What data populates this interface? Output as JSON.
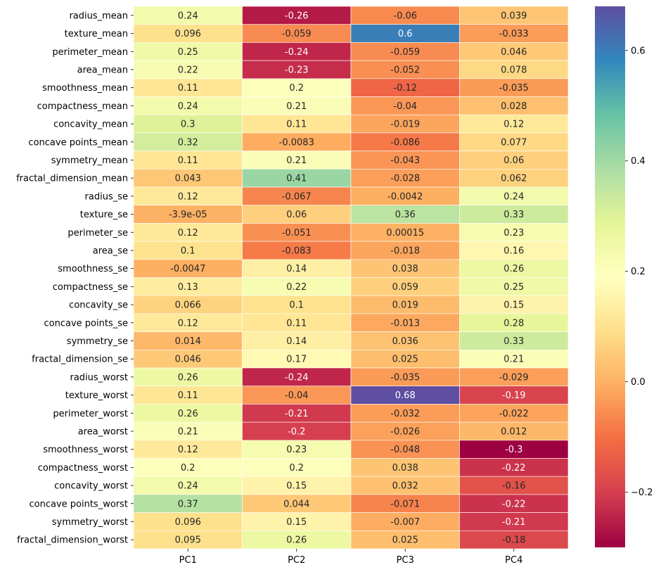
{
  "chart_data": {
    "type": "heatmap",
    "title": "",
    "xlabel": "",
    "ylabel": "",
    "columns": [
      "PC1",
      "PC2",
      "PC3",
      "PC4"
    ],
    "rows": [
      "radius_mean",
      "texture_mean",
      "perimeter_mean",
      "area_mean",
      "smoothness_mean",
      "compactness_mean",
      "concavity_mean",
      "concave points_mean",
      "symmetry_mean",
      "fractal_dimension_mean",
      "radius_se",
      "texture_se",
      "perimeter_se",
      "area_se",
      "smoothness_se",
      "compactness_se",
      "concavity_se",
      "concave points_se",
      "symmetry_se",
      "fractal_dimension_se",
      "radius_worst",
      "texture_worst",
      "perimeter_worst",
      "area_worst",
      "smoothness_worst",
      "compactness_worst",
      "concavity_worst",
      "concave points_worst",
      "symmetry_worst",
      "fractal_dimension_worst"
    ],
    "values": [
      [
        0.24,
        -0.26,
        -0.06,
        0.039
      ],
      [
        0.096,
        -0.059,
        0.6,
        -0.033
      ],
      [
        0.25,
        -0.24,
        -0.059,
        0.046
      ],
      [
        0.22,
        -0.23,
        -0.052,
        0.078
      ],
      [
        0.11,
        0.2,
        -0.12,
        -0.035
      ],
      [
        0.24,
        0.21,
        -0.04,
        0.028
      ],
      [
        0.3,
        0.11,
        -0.019,
        0.12
      ],
      [
        0.32,
        -0.0083,
        -0.086,
        0.077
      ],
      [
        0.11,
        0.21,
        -0.043,
        0.06
      ],
      [
        0.043,
        0.41,
        -0.028,
        0.062
      ],
      [
        0.12,
        -0.067,
        -0.0042,
        0.24
      ],
      [
        -3.9e-05,
        0.06,
        0.36,
        0.33
      ],
      [
        0.12,
        -0.051,
        0.00015,
        0.23
      ],
      [
        0.1,
        -0.083,
        -0.018,
        0.16
      ],
      [
        -0.0047,
        0.14,
        0.038,
        0.26
      ],
      [
        0.13,
        0.22,
        0.059,
        0.25
      ],
      [
        0.066,
        0.1,
        0.019,
        0.15
      ],
      [
        0.12,
        0.11,
        -0.013,
        0.28
      ],
      [
        0.014,
        0.14,
        0.036,
        0.33
      ],
      [
        0.046,
        0.17,
        0.025,
        0.21
      ],
      [
        0.26,
        -0.24,
        -0.035,
        -0.029
      ],
      [
        0.11,
        -0.04,
        0.68,
        -0.19
      ],
      [
        0.26,
        -0.21,
        -0.032,
        -0.022
      ],
      [
        0.21,
        -0.2,
        -0.026,
        0.012
      ],
      [
        0.12,
        0.23,
        -0.048,
        -0.3
      ],
      [
        0.2,
        0.2,
        0.038,
        -0.22
      ],
      [
        0.24,
        0.15,
        0.032,
        -0.16
      ],
      [
        0.37,
        0.044,
        -0.071,
        -0.22
      ],
      [
        0.096,
        0.15,
        -0.007,
        -0.21
      ],
      [
        0.095,
        0.26,
        0.025,
        -0.18
      ]
    ],
    "annotations": [
      [
        "0.24",
        "-0.26",
        "-0.06",
        "0.039"
      ],
      [
        "0.096",
        "-0.059",
        "0.6",
        "-0.033"
      ],
      [
        "0.25",
        "-0.24",
        "-0.059",
        "0.046"
      ],
      [
        "0.22",
        "-0.23",
        "-0.052",
        "0.078"
      ],
      [
        "0.11",
        "0.2",
        "-0.12",
        "-0.035"
      ],
      [
        "0.24",
        "0.21",
        "-0.04",
        "0.028"
      ],
      [
        "0.3",
        "0.11",
        "-0.019",
        "0.12"
      ],
      [
        "0.32",
        "-0.0083",
        "-0.086",
        "0.077"
      ],
      [
        "0.11",
        "0.21",
        "-0.043",
        "0.06"
      ],
      [
        "0.043",
        "0.41",
        "-0.028",
        "0.062"
      ],
      [
        "0.12",
        "-0.067",
        "-0.0042",
        "0.24"
      ],
      [
        "-3.9e-05",
        "0.06",
        "0.36",
        "0.33"
      ],
      [
        "0.12",
        "-0.051",
        "0.00015",
        "0.23"
      ],
      [
        "0.1",
        "-0.083",
        "-0.018",
        "0.16"
      ],
      [
        "-0.0047",
        "0.14",
        "0.038",
        "0.26"
      ],
      [
        "0.13",
        "0.22",
        "0.059",
        "0.25"
      ],
      [
        "0.066",
        "0.1",
        "0.019",
        "0.15"
      ],
      [
        "0.12",
        "0.11",
        "-0.013",
        "0.28"
      ],
      [
        "0.014",
        "0.14",
        "0.036",
        "0.33"
      ],
      [
        "0.046",
        "0.17",
        "0.025",
        "0.21"
      ],
      [
        "0.26",
        "-0.24",
        "-0.035",
        "-0.029"
      ],
      [
        "0.11",
        "-0.04",
        "0.68",
        "-0.19"
      ],
      [
        "0.26",
        "-0.21",
        "-0.032",
        "-0.022"
      ],
      [
        "0.21",
        "-0.2",
        "-0.026",
        "0.012"
      ],
      [
        "0.12",
        "0.23",
        "-0.048",
        "-0.3"
      ],
      [
        "0.2",
        "0.2",
        "0.038",
        "-0.22"
      ],
      [
        "0.24",
        "0.15",
        "0.032",
        "-0.16"
      ],
      [
        "0.37",
        "0.044",
        "-0.071",
        "-0.22"
      ],
      [
        "0.096",
        "0.15",
        "-0.007",
        "-0.21"
      ],
      [
        "0.095",
        "0.26",
        "0.025",
        "-0.18"
      ]
    ],
    "colormap": "Spectral",
    "vmin": -0.3,
    "vmax": 0.68,
    "colorbar_ticks": [
      -0.2,
      0.0,
      0.2,
      0.4,
      0.6
    ],
    "colorbar_tick_labels": [
      "−0.2",
      "0.0",
      "0.2",
      "0.4",
      "0.6"
    ],
    "grid_line_color": "#ffffff"
  }
}
